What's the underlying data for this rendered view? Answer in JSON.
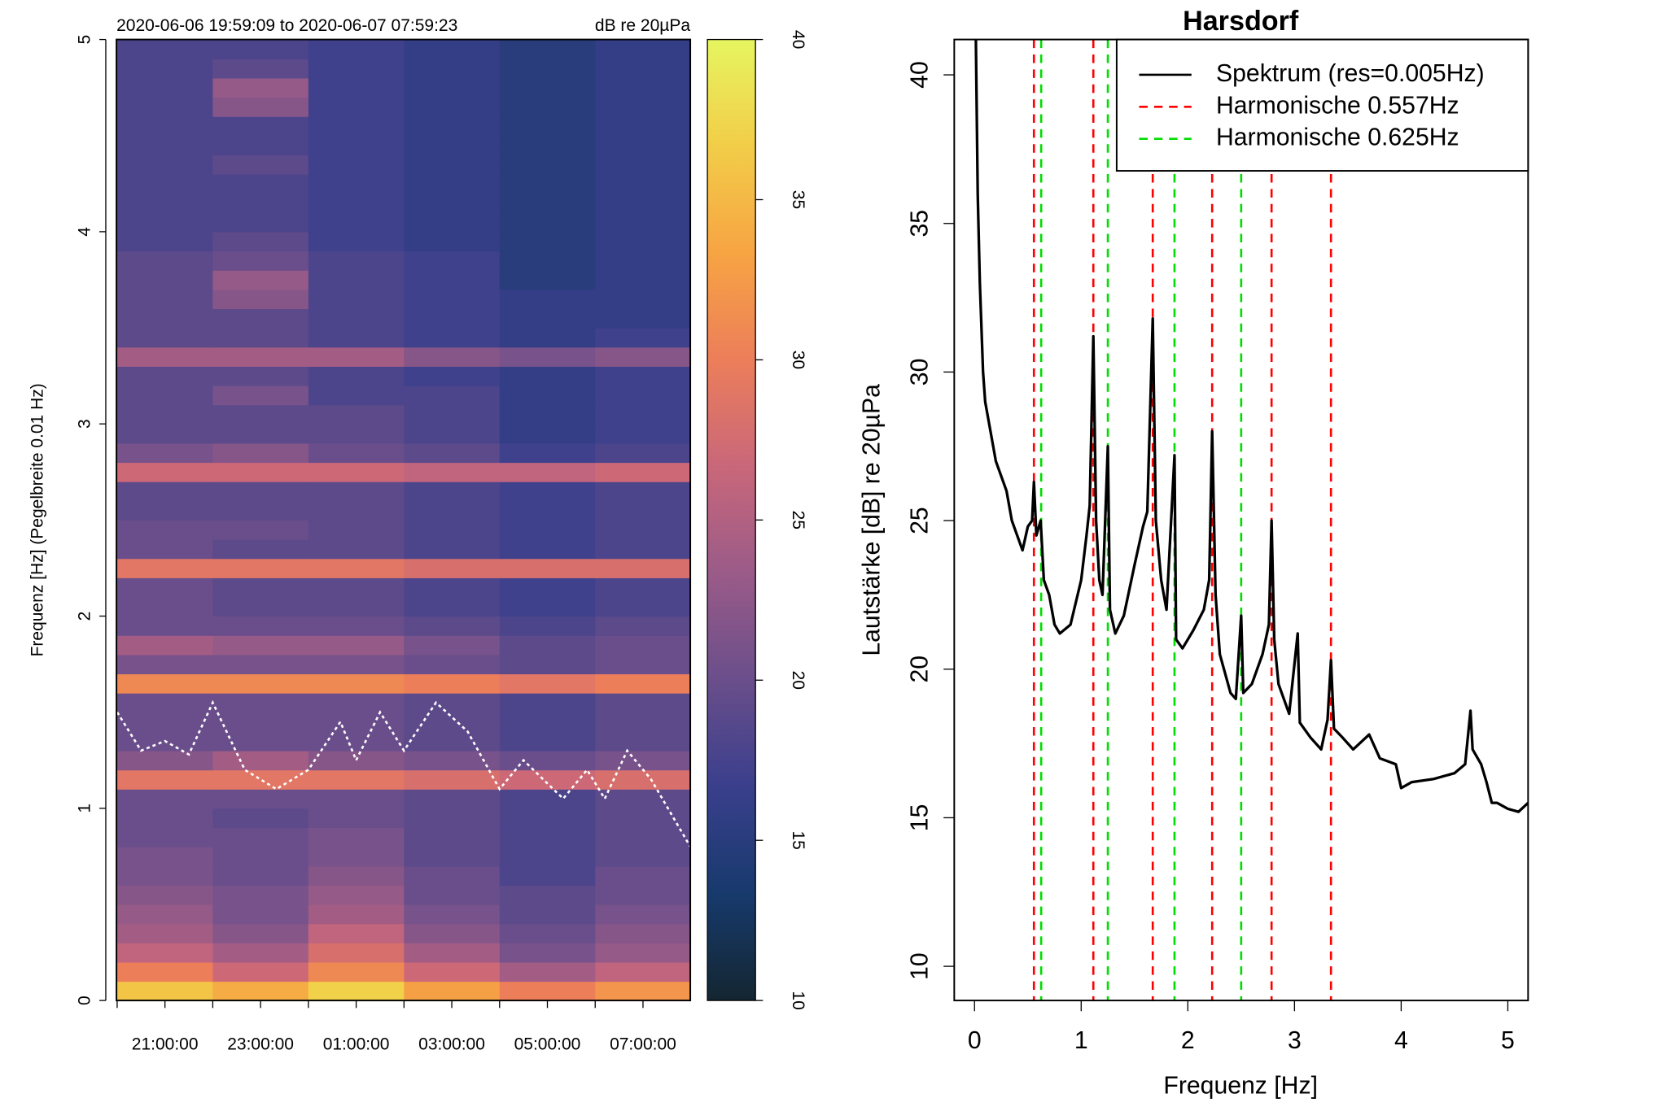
{
  "chart_data": [
    {
      "type": "heatmap",
      "subtitle": "2020-06-06 19:59:09 to 2020-06-07 07:59:23",
      "y_label": "Frequenz [Hz] (Pegelbreite 0.01 Hz)",
      "xlim": [
        19.9858,
        31.9897
      ],
      "ylim": [
        0,
        5
      ],
      "xticks": [
        {
          "value": 21,
          "label": "21:00:00"
        },
        {
          "value": 23,
          "label": "23:00:00"
        },
        {
          "value": 25,
          "label": "01:00:00"
        },
        {
          "value": 27,
          "label": "03:00:00"
        },
        {
          "value": 29,
          "label": "05:00:00"
        },
        {
          "value": 31,
          "label": "07:00:00"
        }
      ],
      "xminorticks": [
        20,
        22,
        24,
        26,
        28,
        30
      ],
      "yticks": [
        0,
        1,
        2,
        3,
        4,
        5
      ],
      "xbins": [
        19.9858,
        22,
        24,
        26,
        28,
        30,
        31.9897
      ],
      "ybins": [
        0,
        0.1,
        0.2,
        0.3,
        0.4,
        0.5,
        0.6,
        0.7,
        0.8,
        0.9,
        1,
        1.1,
        1.2,
        1.3,
        1.4,
        1.5,
        1.6,
        1.7,
        1.8,
        1.9,
        2,
        2.1,
        2.2,
        2.3,
        2.4,
        2.5,
        2.6,
        2.7,
        2.8,
        2.9,
        3,
        3.1,
        3.2,
        3.3,
        3.4,
        3.5,
        3.6,
        3.7,
        3.8,
        3.9,
        4,
        4.1,
        4.2,
        4.3,
        4.4,
        4.5,
        4.6,
        4.7,
        4.8,
        4.9,
        5
      ],
      "z": [
        [
          36,
          34,
          37,
          33,
          30,
          32
        ],
        [
          30,
          27,
          31,
          27,
          24,
          26
        ],
        [
          26,
          24,
          28,
          24,
          21,
          23
        ],
        [
          24,
          22,
          26,
          22,
          20,
          22
        ],
        [
          23,
          21,
          24,
          21,
          19,
          21
        ],
        [
          22,
          21,
          23,
          20,
          19,
          20
        ],
        [
          21,
          20,
          22,
          20,
          18,
          20
        ],
        [
          21,
          20,
          21,
          19,
          18,
          19
        ],
        [
          20,
          20,
          21,
          19,
          18,
          19
        ],
        [
          20,
          19,
          20,
          19,
          18,
          19
        ],
        [
          20,
          20,
          20,
          19,
          18,
          19
        ],
        [
          29,
          29,
          29,
          28,
          27,
          28
        ],
        [
          22,
          24,
          22,
          21,
          20,
          21
        ],
        [
          20,
          20,
          20,
          19,
          18,
          19
        ],
        [
          20,
          20,
          20,
          19,
          18,
          19
        ],
        [
          20,
          20,
          20,
          19,
          18,
          19
        ],
        [
          31,
          31,
          31,
          30,
          29,
          30
        ],
        [
          21,
          21,
          21,
          20,
          19,
          20
        ],
        [
          24,
          23,
          23,
          21,
          19,
          20
        ],
        [
          20,
          20,
          20,
          19,
          18,
          19
        ],
        [
          20,
          19,
          19,
          18,
          17,
          18
        ],
        [
          20,
          19,
          19,
          18,
          17,
          18
        ],
        [
          29,
          29,
          29,
          28,
          28,
          28
        ],
        [
          20,
          19,
          19,
          18,
          17,
          18
        ],
        [
          20,
          20,
          19,
          18,
          17,
          18
        ],
        [
          19,
          19,
          19,
          18,
          17,
          18
        ],
        [
          19,
          19,
          19,
          18,
          17,
          18
        ],
        [
          27,
          27,
          27,
          26,
          26,
          27
        ],
        [
          21,
          22,
          20,
          19,
          17,
          18
        ],
        [
          19,
          19,
          19,
          18,
          16,
          17
        ],
        [
          19,
          19,
          19,
          18,
          16,
          17
        ],
        [
          19,
          21,
          18,
          18,
          16,
          17
        ],
        [
          19,
          19,
          18,
          17,
          16,
          17
        ],
        [
          24,
          24,
          24,
          22,
          21,
          22
        ],
        [
          19,
          19,
          18,
          17,
          16,
          17
        ],
        [
          19,
          19,
          18,
          17,
          16,
          16
        ],
        [
          19,
          22,
          18,
          17,
          16,
          16
        ],
        [
          19,
          23,
          18,
          17,
          15,
          16
        ],
        [
          19,
          20,
          18,
          17,
          15,
          16
        ],
        [
          18,
          19,
          17,
          16,
          15,
          16
        ],
        [
          18,
          18,
          17,
          16,
          15,
          16
        ],
        [
          18,
          18,
          17,
          16,
          15,
          16
        ],
        [
          18,
          18,
          17,
          16,
          15,
          16
        ],
        [
          18,
          19,
          17,
          16,
          15,
          16
        ],
        [
          18,
          18,
          17,
          16,
          15,
          16
        ],
        [
          18,
          18,
          17,
          16,
          15,
          16
        ],
        [
          18,
          22,
          17,
          16,
          15,
          16
        ],
        [
          18,
          23,
          17,
          16,
          15,
          16
        ],
        [
          18,
          19,
          17,
          16,
          15,
          16
        ],
        [
          18,
          18,
          17,
          16,
          15,
          16
        ]
      ],
      "colorbar": {
        "label": "dB re 20µPa",
        "zlim": [
          10,
          40
        ],
        "ticks": [
          10,
          15,
          20,
          25,
          30,
          35,
          40
        ],
        "colors": [
          "#142631",
          "#173a6d",
          "#3a3f8c",
          "#6a4e8b",
          "#9a5b88",
          "#c9677a",
          "#ec7e5a",
          "#f7a443",
          "#f2cd48",
          "#e6f560"
        ]
      },
      "overlay": {
        "color": "#ffffff",
        "x": [
          20.0,
          20.5,
          21,
          21.5,
          22,
          22.67,
          23.33,
          24,
          24.67,
          25,
          25.5,
          26,
          26.67,
          27.33,
          28,
          28.5,
          29.33,
          29.83,
          30.2,
          30.67,
          31.17,
          31.99
        ],
        "values": [
          1.5,
          1.3,
          1.35,
          1.28,
          1.55,
          1.2,
          1.1,
          1.2,
          1.45,
          1.25,
          1.5,
          1.3,
          1.55,
          1.4,
          1.1,
          1.25,
          1.05,
          1.2,
          1.05,
          1.3,
          1.15,
          0.8
        ]
      }
    },
    {
      "type": "line",
      "title": "Harsdorf",
      "x_label": "Frequenz [Hz]",
      "y_label": "Lautstärke [dB] re 20µPa",
      "xlim": [
        -0.19,
        5.19
      ],
      "ylim": [
        8.85,
        41.19
      ],
      "xticks": [
        0,
        1,
        2,
        3,
        4,
        5
      ],
      "yticks": [
        10,
        15,
        20,
        25,
        30,
        35,
        40
      ],
      "legend": "top-right",
      "series": [
        {
          "name": "Spektrum (res=0.005Hz)",
          "color": "#000000",
          "x": [
            0.01,
            0.03,
            0.05,
            0.08,
            0.1,
            0.15,
            0.2,
            0.25,
            0.3,
            0.35,
            0.4,
            0.45,
            0.5,
            0.54,
            0.557,
            0.58,
            0.62,
            0.65,
            0.7,
            0.75,
            0.8,
            0.9,
            1.0,
            1.05,
            1.08,
            1.114,
            1.14,
            1.17,
            1.2,
            1.25,
            1.27,
            1.32,
            1.4,
            1.5,
            1.58,
            1.62,
            1.671,
            1.7,
            1.75,
            1.8,
            1.875,
            1.89,
            1.95,
            2.05,
            2.15,
            2.2,
            2.228,
            2.26,
            2.3,
            2.4,
            2.45,
            2.5,
            2.52,
            2.6,
            2.7,
            2.76,
            2.785,
            2.81,
            2.85,
            2.95,
            3.03,
            3.05,
            3.15,
            3.25,
            3.31,
            3.342,
            3.37,
            3.45,
            3.55,
            3.7,
            3.8,
            3.95,
            4.0,
            4.1,
            4.3,
            4.5,
            4.6,
            4.65,
            4.67,
            4.75,
            4.8,
            4.85,
            4.9,
            5.0,
            5.1,
            5.19
          ],
          "values": [
            42,
            36,
            33,
            30,
            29,
            28,
            27,
            26.5,
            26,
            25,
            24.5,
            24,
            24.8,
            25,
            26.3,
            24.5,
            25,
            23,
            22.5,
            21.5,
            21.2,
            21.5,
            23,
            24.5,
            25.5,
            31.2,
            25,
            23,
            22.5,
            27.5,
            22,
            21.2,
            21.8,
            23.5,
            24.8,
            25.3,
            31.8,
            25,
            23,
            22,
            27.2,
            21,
            20.7,
            21.3,
            22,
            23,
            28,
            22.5,
            20.5,
            19.2,
            19.0,
            21.8,
            19.2,
            19.5,
            20.5,
            21.5,
            25,
            21,
            19.5,
            18.5,
            21.2,
            18.2,
            17.7,
            17.3,
            18.3,
            20.3,
            18,
            17.7,
            17.3,
            17.8,
            17,
            16.8,
            16,
            16.2,
            16.3,
            16.5,
            16.8,
            18.6,
            17.3,
            16.8,
            16.2,
            15.5,
            15.5,
            15.3,
            15.2,
            15.5
          ]
        },
        {
          "name": "Harmonische 0.557Hz",
          "color": "#ff0000",
          "dashed": true,
          "vlines": [
            0.557,
            1.114,
            1.671,
            2.228,
            2.785,
            3.342
          ]
        },
        {
          "name": "Harmonische 0.625Hz",
          "color": "#00dd00",
          "dashed": true,
          "vlines": [
            0.625,
            1.25,
            1.875,
            2.5
          ]
        }
      ]
    }
  ]
}
